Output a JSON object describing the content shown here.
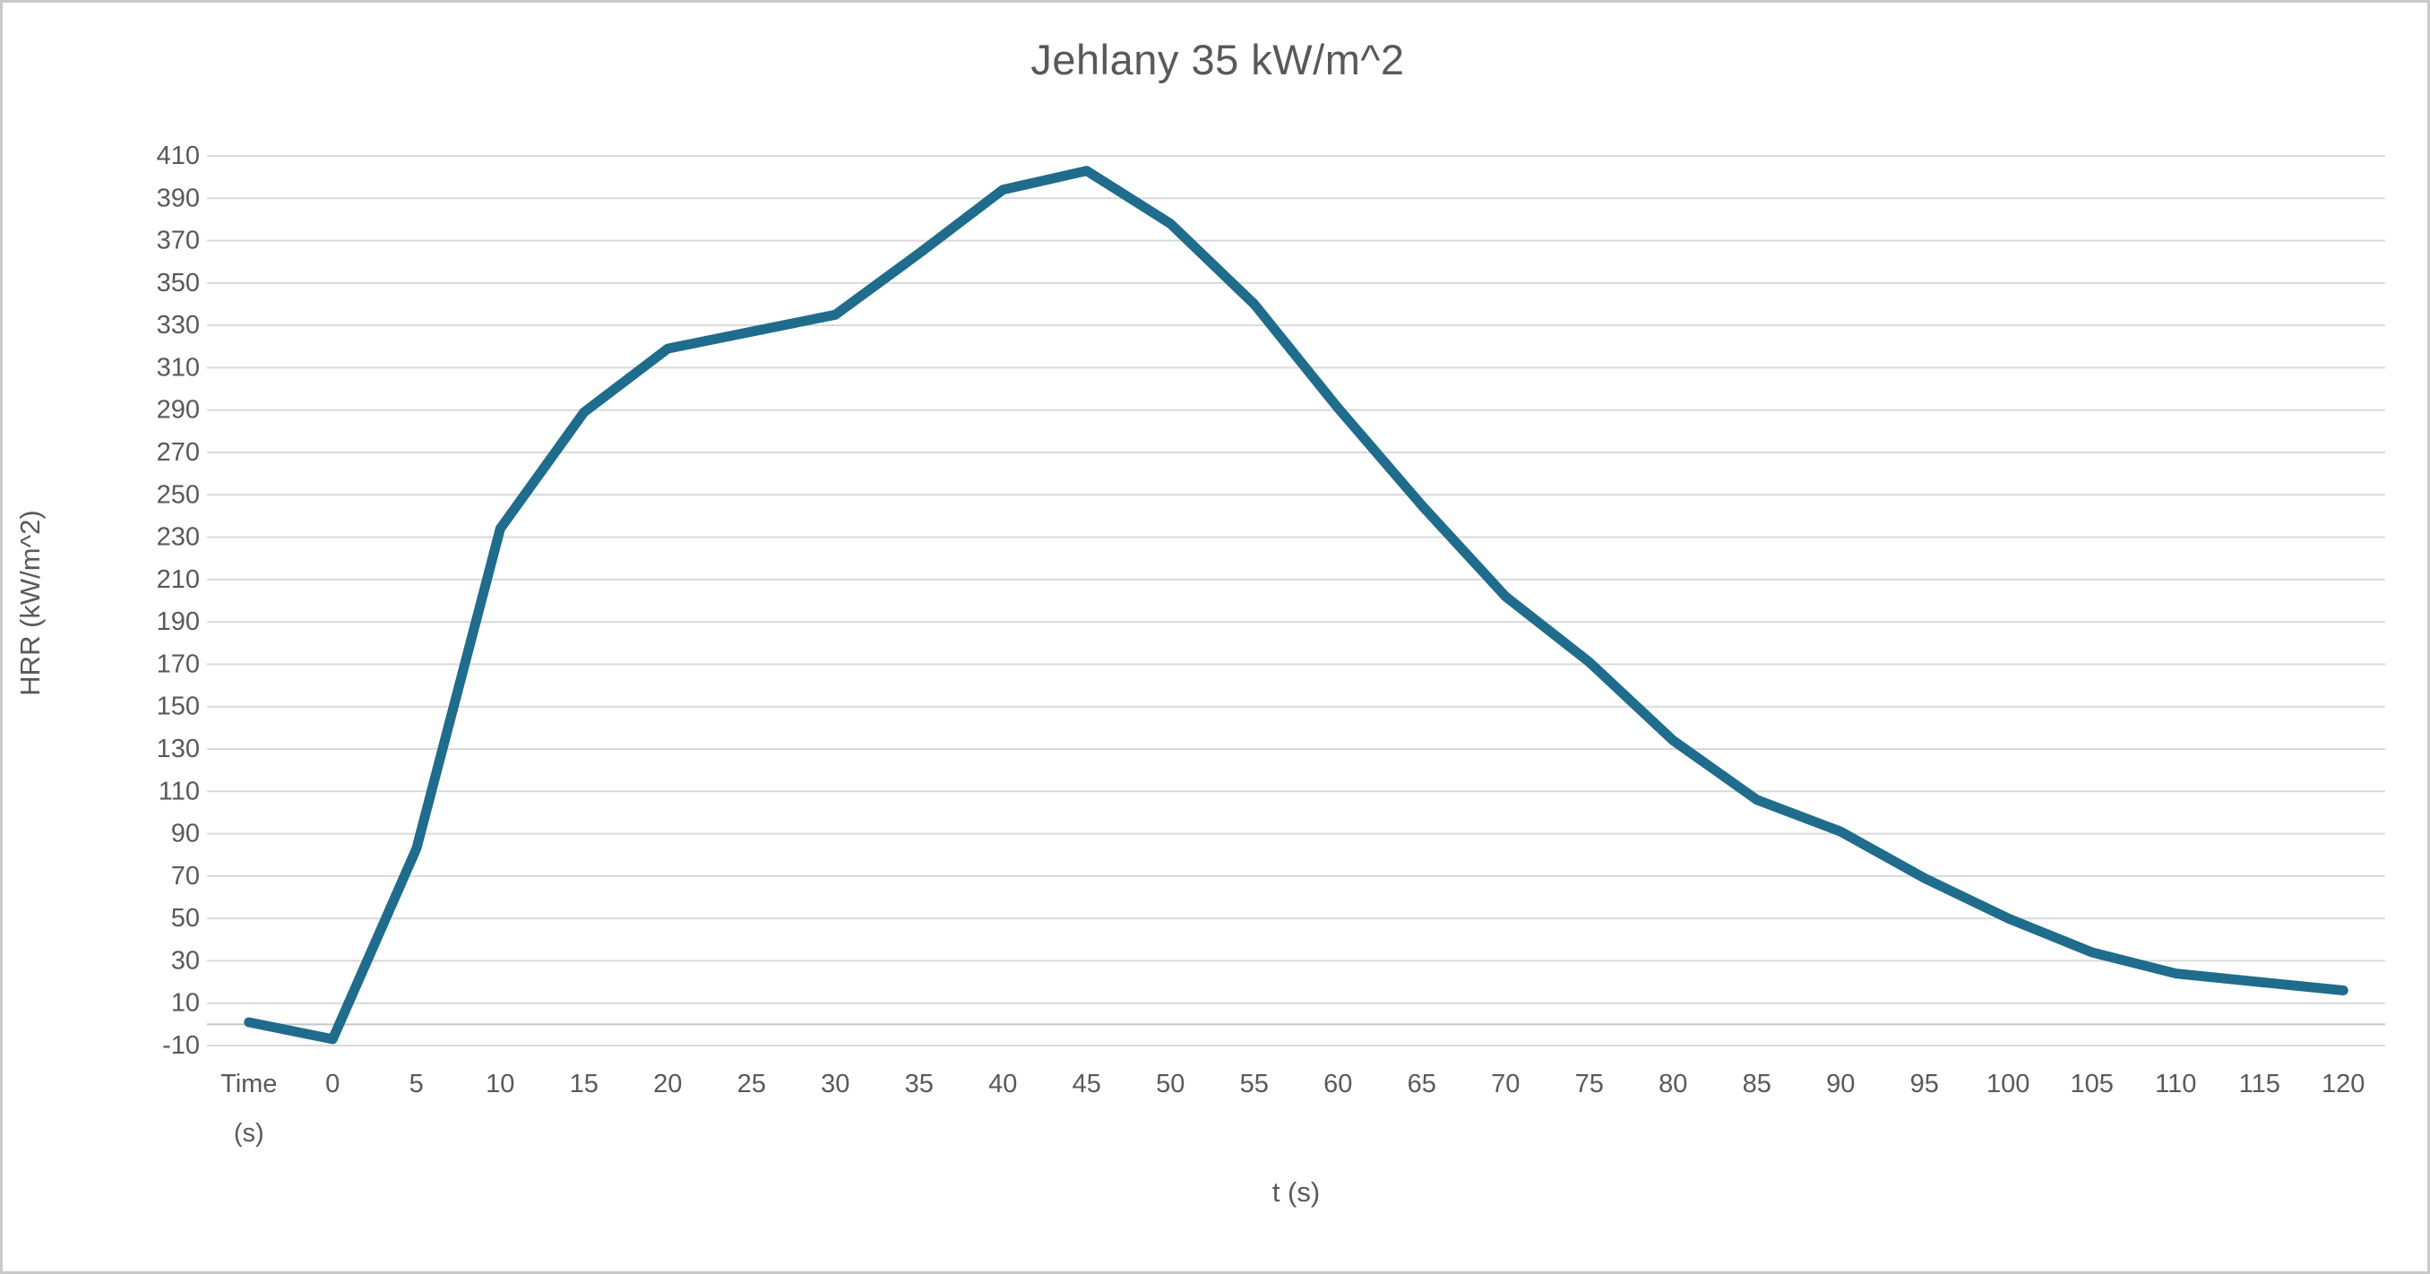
{
  "page": {
    "background": "#ffffff",
    "border_color": "#c9c9c9"
  },
  "chart_data": {
    "type": "line",
    "title": "Jehlany 35 kW/m^2",
    "xlabel": "t (s)",
    "ylabel": "HRR (kW/m^2)",
    "categories": [
      "Time\n(s)",
      "0",
      "5",
      "10",
      "15",
      "20",
      "25",
      "30",
      "35",
      "40",
      "45",
      "50",
      "55",
      "60",
      "65",
      "70",
      "75",
      "80",
      "85",
      "90",
      "95",
      "100",
      "105",
      "110",
      "115",
      "120"
    ],
    "series": [
      {
        "name": "HRR",
        "color": "#1f6c8c",
        "values": [
          1,
          -7,
          83,
          234,
          289,
          319,
          327,
          335,
          364,
          394,
          403,
          378,
          340,
          291,
          245,
          202,
          171,
          134,
          106,
          91,
          69,
          50,
          34,
          24,
          20,
          16
        ]
      }
    ],
    "ylim": [
      -10,
      410
    ],
    "ytick_step": 20,
    "grid": true,
    "legend_position": "none",
    "gridline_color": "#d9d9d9",
    "zero_axis_color": "#c6c6c6",
    "label_color": "#595959",
    "line_width": 11
  }
}
